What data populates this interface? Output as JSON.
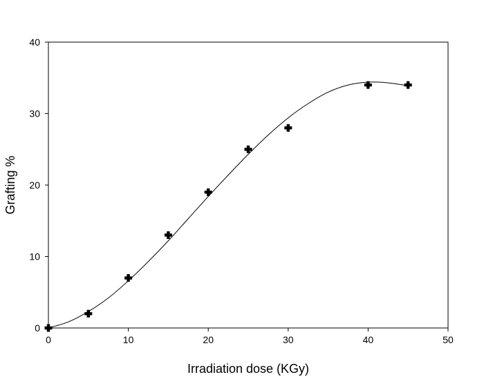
{
  "chart_data": {
    "type": "scatter",
    "xlabel": "Irradiation dose (KGy)",
    "ylabel": "Grafting %",
    "xlim": [
      0,
      50
    ],
    "ylim": [
      0,
      40
    ],
    "xticks": [
      0,
      10,
      20,
      30,
      40,
      50
    ],
    "yticks": [
      0,
      10,
      20,
      30,
      40
    ],
    "grid": false,
    "series": [
      {
        "marker": "plus",
        "x": [
          0,
          5,
          10,
          15,
          20,
          25,
          30,
          40,
          45
        ],
        "y": [
          0,
          2,
          7,
          13,
          19,
          25,
          28,
          34,
          34
        ]
      }
    ],
    "fit_curve": {
      "x": [
        0,
        2.5,
        5,
        7.5,
        10,
        12.5,
        15,
        17.5,
        20,
        22.5,
        25,
        27.5,
        30,
        32.5,
        35,
        37.5,
        40,
        42.5,
        45
      ],
      "y": [
        0,
        0.85,
        2.3,
        4.2,
        6.6,
        9.3,
        12.2,
        15.3,
        18.4,
        21.4,
        24.3,
        27.0,
        29.4,
        31.4,
        33.0,
        34.0,
        34.4,
        34.3,
        33.9
      ]
    }
  }
}
